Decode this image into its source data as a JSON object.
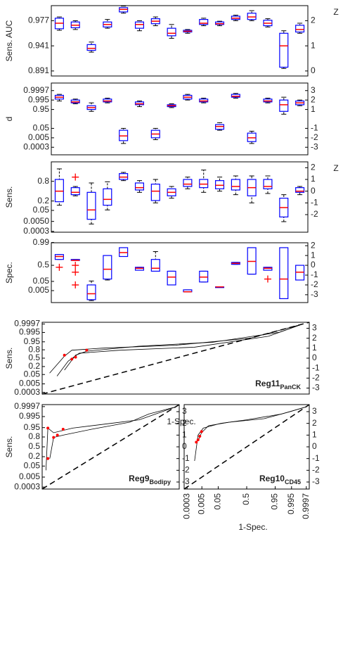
{
  "chart_data": [
    {
      "type": "box",
      "ylabel": "Sens. AUC",
      "y2label": "Z",
      "ylim": [
        -0.2,
        2.6
      ],
      "yticks": [
        0,
        1,
        2
      ],
      "left_yticks": [
        {
          "value": 0,
          "label": "0.891"
        },
        {
          "value": 1,
          "label": "0.941"
        },
        {
          "value": 2,
          "label": "0.977"
        }
      ],
      "box_color": "#0000ff",
      "median_color": "#ff0000",
      "boxes": [
        [
          1.62,
          1.68,
          1.9,
          2.1,
          2.15
        ],
        [
          1.65,
          1.72,
          1.82,
          1.95,
          2.0
        ],
        [
          0.75,
          0.82,
          0.9,
          1.05,
          1.15
        ],
        [
          1.7,
          1.75,
          1.85,
          1.95,
          2.05
        ],
        [
          2.3,
          2.35,
          2.45,
          2.52,
          2.58
        ],
        [
          1.6,
          1.7,
          1.85,
          1.95,
          2.0
        ],
        [
          1.8,
          1.88,
          1.98,
          2.08,
          2.15
        ],
        [
          1.3,
          1.4,
          1.5,
          1.7,
          1.85
        ],
        [
          1.5,
          1.55,
          1.58,
          1.62,
          1.65
        ],
        [
          1.8,
          1.85,
          1.9,
          2.05,
          2.1
        ],
        [
          1.8,
          1.85,
          1.88,
          1.95,
          1.98
        ],
        [
          2.0,
          2.05,
          2.1,
          2.18,
          2.22
        ],
        [
          2.0,
          2.05,
          2.15,
          2.3,
          2.4
        ],
        [
          1.75,
          1.8,
          1.9,
          2.02,
          2.08
        ],
        [
          0.1,
          0.15,
          1.0,
          1.5,
          1.6
        ],
        [
          1.5,
          1.55,
          1.65,
          1.82,
          1.9
        ]
      ],
      "outliers": []
    },
    {
      "type": "box",
      "ylabel": "d",
      "ylim": [
        -3.8,
        3.8
      ],
      "yticks": [
        -3,
        -2,
        -1,
        1,
        2,
        3
      ],
      "left_yticks": [
        {
          "value": -3,
          "label": "0.0003"
        },
        {
          "value": -2,
          "label": "0.005"
        },
        {
          "value": -1,
          "label": "0.05"
        },
        {
          "value": 1,
          "label": "0.95"
        },
        {
          "value": 2,
          "label": "0.995"
        },
        {
          "value": 3,
          "label": "0.9997"
        }
      ],
      "box_color": "#0000ff",
      "median_color": "#ff0000",
      "boxes": [
        [
          1.9,
          2.1,
          2.3,
          2.5,
          2.6
        ],
        [
          1.6,
          1.7,
          1.8,
          2.0,
          2.1
        ],
        [
          0.8,
          1.0,
          1.2,
          1.4,
          1.7
        ],
        [
          1.7,
          1.8,
          1.9,
          2.1,
          2.2
        ],
        [
          -2.6,
          -2.3,
          -1.8,
          -1.2,
          -1.0
        ],
        [
          1.3,
          1.5,
          1.6,
          1.8,
          1.9
        ],
        [
          -2.2,
          -2.0,
          -1.6,
          -1.2,
          -1.0
        ],
        [
          1.2,
          1.3,
          1.4,
          1.5,
          1.6
        ],
        [
          2.0,
          2.1,
          2.3,
          2.5,
          2.6
        ],
        [
          1.7,
          1.8,
          1.9,
          2.1,
          2.2
        ],
        [
          -1.2,
          -1.1,
          -0.8,
          -0.6,
          -0.4
        ],
        [
          2.2,
          2.3,
          2.4,
          2.6,
          2.7
        ],
        [
          -2.6,
          -2.4,
          -2.0,
          -1.5,
          -1.3
        ],
        [
          1.7,
          1.8,
          1.9,
          2.1,
          2.2
        ],
        [
          0.5,
          0.8,
          1.5,
          2.0,
          2.3
        ],
        [
          1.4,
          1.5,
          1.7,
          1.9,
          2.0
        ]
      ],
      "outliers": []
    },
    {
      "type": "box",
      "ylabel": "Sens.",
      "y2label": "Z",
      "ylim": [
        -3.5,
        2.5
      ],
      "yticks": [
        -2,
        -1,
        0,
        1,
        2
      ],
      "left_yticks": [
        {
          "value": 0.84,
          "label": "0.8"
        },
        {
          "value": -0.84,
          "label": "0.2"
        },
        {
          "value": -1.64,
          "label": "0.05"
        },
        {
          "value": -2.58,
          "label": "0.0050"
        },
        {
          "value": -3.43,
          "label": "0.0003"
        }
      ],
      "box_color": "#0000ff",
      "median_color": "#ff0000",
      "boxes": [
        [
          -1.2,
          -0.9,
          0.0,
          1.0,
          1.9
        ],
        [
          -0.4,
          -0.3,
          -0.1,
          0.3,
          0.4
        ],
        [
          -2.8,
          -2.4,
          -1.6,
          -0.1,
          0.7
        ],
        [
          -1.6,
          -1.2,
          -0.7,
          0.2,
          0.8
        ],
        [
          0.9,
          1.0,
          1.2,
          1.5,
          1.6
        ],
        [
          -0.1,
          0.1,
          0.3,
          0.7,
          0.9
        ],
        [
          -1.0,
          -0.8,
          0.0,
          0.6,
          1.0
        ],
        [
          -0.6,
          -0.4,
          -0.1,
          0.2,
          0.4
        ],
        [
          0.2,
          0.4,
          0.6,
          1.0,
          1.2
        ],
        [
          -0.1,
          0.3,
          0.6,
          1.0,
          1.8
        ],
        [
          0.0,
          0.2,
          0.5,
          0.9,
          1.2
        ],
        [
          -0.3,
          0.1,
          0.4,
          1.0,
          1.3
        ],
        [
          -1.0,
          -0.4,
          0.3,
          1.0,
          1.3
        ],
        [
          -0.2,
          0.2,
          0.4,
          1.0,
          1.3
        ],
        [
          -2.6,
          -2.2,
          -1.4,
          -0.6,
          -0.3
        ],
        [
          -0.3,
          -0.1,
          0.0,
          0.3,
          0.4
        ]
      ],
      "outliers": [
        [
          1,
          1.2
        ]
      ]
    },
    {
      "type": "box",
      "ylabel": "Spec.",
      "ylim": [
        -3.8,
        2.3
      ],
      "yticks": [
        -3,
        -2,
        -1,
        0,
        1,
        2
      ],
      "left_yticks": [
        {
          "value": 2.33,
          "label": "0.99"
        },
        {
          "value": 0,
          "label": "0.5"
        },
        {
          "value": -1.64,
          "label": "0.05"
        },
        {
          "value": -2.58,
          "label": "0.005"
        }
      ],
      "box_color": "#0000ff",
      "median_color": "#ff0000",
      "boxes": [
        [
          0.6,
          0.6,
          0.9,
          1.1,
          1.1
        ],
        [
          0.5,
          0.5,
          0.5,
          0.6,
          0.6
        ],
        [
          -3.6,
          -3.5,
          -2.9,
          -2.0,
          -1.6
        ],
        [
          -1.5,
          -1.4,
          -0.4,
          1.0,
          1.0
        ],
        [
          0.9,
          0.9,
          1.3,
          1.8,
          1.8
        ],
        [
          -0.5,
          -0.5,
          -0.3,
          -0.2,
          -0.2
        ],
        [
          -0.6,
          -0.6,
          -0.3,
          0.6,
          1.4
        ],
        [
          -2.0,
          -2.0,
          -1.2,
          -0.6,
          -0.6
        ],
        [
          -2.7,
          -2.7,
          -2.7,
          -2.5,
          -2.5
        ],
        [
          -1.7,
          -1.7,
          -1.2,
          -0.6,
          -0.6
        ],
        [
          -2.2,
          -2.2,
          -2.2,
          -2.2,
          -2.2
        ],
        [
          0.1,
          0.1,
          0.2,
          0.3,
          0.3
        ],
        [
          -0.9,
          -0.9,
          0.4,
          1.8,
          1.8
        ],
        [
          -0.5,
          -0.5,
          -0.3,
          -0.2,
          -0.2
        ],
        [
          -3.4,
          -3.4,
          -1.4,
          1.8,
          1.8
        ],
        [
          -1.5,
          -1.5,
          -0.7,
          0.0,
          0.0
        ]
      ],
      "outliers": [
        [
          0,
          -0.2
        ],
        [
          1,
          0.0
        ],
        [
          1,
          -0.7
        ],
        [
          1,
          -2.0
        ],
        [
          13,
          -1.4
        ]
      ]
    },
    {
      "type": "roc",
      "title": "Reg11",
      "subtitle": "PanCK",
      "ylabel": "Sens.",
      "xlabel": "1-Spec.",
      "xlim": [
        -3.6,
        3.6
      ],
      "ylim": [
        -3.6,
        3.6
      ],
      "y2ticks": [
        -3,
        -2,
        -1,
        0,
        1,
        2,
        3
      ],
      "left_yticks": [
        {
          "value": 3.43,
          "label": "0.9997"
        },
        {
          "value": 2.58,
          "label": "0.995"
        },
        {
          "value": 1.64,
          "label": "0.95"
        },
        {
          "value": 0.84,
          "label": "0.8"
        },
        {
          "value": 0,
          "label": "0.5"
        },
        {
          "value": -0.84,
          "label": "0.2"
        },
        {
          "value": -1.64,
          "label": "0.05"
        },
        {
          "value": -2.58,
          "label": "0.005"
        },
        {
          "value": -3.43,
          "label": "0.0003"
        }
      ],
      "curves": [
        {
          "x": [
            -3.4,
            -3.0,
            -2.8,
            -2.0,
            0,
            2.0,
            3.4
          ],
          "y": [
            -1.5,
            0.2,
            0.8,
            1.0,
            1.3,
            2.0,
            3.4
          ]
        },
        {
          "x": [
            -3.2,
            -2.9,
            -2.6,
            -1.5,
            0.5,
            2.5,
            3.4
          ],
          "y": [
            -1.8,
            -0.3,
            0.5,
            0.8,
            1.1,
            2.2,
            3.4
          ]
        },
        {
          "x": [
            -3.0,
            -2.7,
            -2.4,
            -1.0,
            1.0,
            2.8,
            3.4
          ],
          "y": [
            -1.2,
            0.3,
            0.7,
            1.2,
            1.6,
            2.6,
            3.4
          ]
        }
      ],
      "point_color": "#ff0000",
      "points": {
        "x": [
          -3.0,
          -2.8,
          -2.7,
          -2.4
        ],
        "y": [
          0.3,
          -0.1,
          0.1,
          0.8
        ]
      }
    },
    {
      "type": "roc",
      "title": "Reg9",
      "subtitle": "Bodipy",
      "ylabel": "Sens.",
      "xlim": [
        -3.6,
        3.6
      ],
      "ylim": [
        -3.6,
        3.6
      ],
      "y2ticks": [
        -3,
        -2,
        -1,
        0,
        1,
        2,
        3
      ],
      "left_yticks": [
        {
          "value": 3.43,
          "label": "0.9997"
        },
        {
          "value": 2.58,
          "label": "0.995"
        },
        {
          "value": 1.64,
          "label": "0.95"
        },
        {
          "value": 0.84,
          "label": "0.8"
        },
        {
          "value": 0,
          "label": "0.5"
        },
        {
          "value": -0.84,
          "label": "0.2"
        },
        {
          "value": -1.64,
          "label": "0.05"
        },
        {
          "value": -2.58,
          "label": "0.005"
        },
        {
          "value": -3.43,
          "label": "0.0003"
        }
      ],
      "curves": [
        {
          "x": [
            -3.4,
            -3.3,
            -3.0,
            -2.0,
            0,
            1.5,
            3.4
          ],
          "y": [
            -2.0,
            1.6,
            1.2,
            1.6,
            2.0,
            2.3,
            3.4
          ]
        },
        {
          "x": [
            -3.2,
            -3.0,
            -2.5,
            -1.0,
            1.0,
            2.0,
            3.4
          ],
          "y": [
            -1.0,
            0.8,
            1.0,
            1.5,
            2.1,
            2.8,
            3.4
          ]
        }
      ],
      "point_color": "#ff0000",
      "points": {
        "x": [
          -3.3,
          -3.0,
          -2.8,
          -2.5,
          -3.3
        ],
        "y": [
          1.6,
          0.8,
          1.0,
          1.5,
          -1.0
        ]
      }
    },
    {
      "type": "roc",
      "title": "Reg10",
      "subtitle": "CD45",
      "xlabel": "1-Spec.",
      "xlim": [
        -3.6,
        3.6
      ],
      "ylim": [
        -3.6,
        3.6
      ],
      "y2ticks": [
        -3,
        -2,
        -1,
        0,
        1,
        2,
        3
      ],
      "xticks": [
        {
          "value": -3.43,
          "label": "0.0003"
        },
        {
          "value": -2.58,
          "label": "0.005"
        },
        {
          "value": -1.64,
          "label": "0.05"
        },
        {
          "value": 0,
          "label": "0.5"
        },
        {
          "value": 1.64,
          "label": "0.95"
        },
        {
          "value": 2.58,
          "label": "0.995"
        },
        {
          "value": 3.43,
          "label": "0.9997"
        }
      ],
      "curves": [
        {
          "x": [
            -3.0,
            -2.8,
            -2.5,
            -1.5,
            0,
            2.0,
            3.4
          ],
          "y": [
            -1.2,
            1.0,
            1.6,
            2.0,
            2.3,
            2.8,
            3.4
          ]
        },
        {
          "x": [
            -2.8,
            -2.6,
            -2.2,
            -1.0,
            1.0,
            2.5,
            3.4
          ],
          "y": [
            0.5,
            1.2,
            1.8,
            2.1,
            2.4,
            3.0,
            3.4
          ]
        }
      ],
      "point_color": "#ff0000",
      "points": {
        "x": [
          -2.9,
          -2.8,
          -2.7,
          -2.6
        ],
        "y": [
          0.4,
          0.6,
          0.9,
          1.3
        ]
      }
    }
  ]
}
